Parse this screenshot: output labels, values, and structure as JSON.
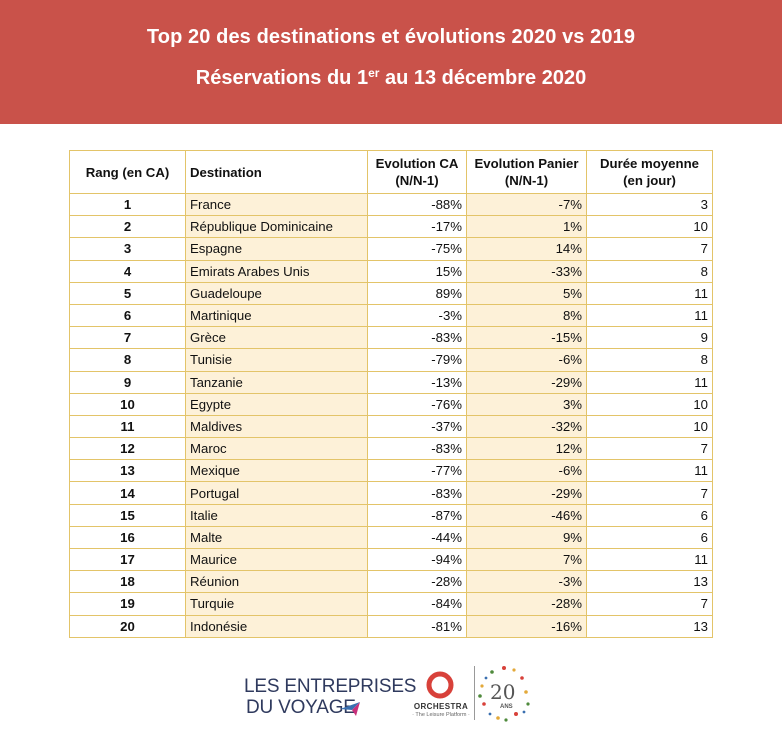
{
  "header": {
    "title_line1": "Top 20 des destinations et évolutions 2020 vs 2019",
    "title_line2_prefix": "Réservations du 1",
    "title_line2_sup": "er",
    "title_line2_suffix": " au 13 décembre 2020",
    "background_color": "#c9524a"
  },
  "table": {
    "headers": {
      "rank": "Rang (en CA)",
      "destination": "Destination",
      "ca_line1": "Evolution CA",
      "ca_line2": "(N/N-1)",
      "panier_line1": "Evolution Panier",
      "panier_line2": "(N/N-1)",
      "duree_line1": "Durée moyenne",
      "duree_line2": "(en jour)"
    },
    "rows": [
      {
        "rank": "1",
        "destination": "France",
        "ca": "-88%",
        "panier": "-7%",
        "duree": "3"
      },
      {
        "rank": "2",
        "destination": "République Dominicaine",
        "ca": "-17%",
        "panier": "1%",
        "duree": "10"
      },
      {
        "rank": "3",
        "destination": "Espagne",
        "ca": "-75%",
        "panier": "14%",
        "duree": "7"
      },
      {
        "rank": "4",
        "destination": "Emirats Arabes Unis",
        "ca": "15%",
        "panier": "-33%",
        "duree": "8"
      },
      {
        "rank": "5",
        "destination": "Guadeloupe",
        "ca": "89%",
        "panier": "5%",
        "duree": "11"
      },
      {
        "rank": "6",
        "destination": "Martinique",
        "ca": "-3%",
        "panier": "8%",
        "duree": "11"
      },
      {
        "rank": "7",
        "destination": "Grèce",
        "ca": "-83%",
        "panier": "-15%",
        "duree": "9"
      },
      {
        "rank": "8",
        "destination": "Tunisie",
        "ca": "-79%",
        "panier": "-6%",
        "duree": "8"
      },
      {
        "rank": "9",
        "destination": "Tanzanie",
        "ca": "-13%",
        "panier": "-29%",
        "duree": "11"
      },
      {
        "rank": "10",
        "destination": "Egypte",
        "ca": "-76%",
        "panier": "3%",
        "duree": "10"
      },
      {
        "rank": "11",
        "destination": "Maldives",
        "ca": "-37%",
        "panier": "-32%",
        "duree": "10"
      },
      {
        "rank": "12",
        "destination": "Maroc",
        "ca": "-83%",
        "panier": "12%",
        "duree": "7"
      },
      {
        "rank": "13",
        "destination": "Mexique",
        "ca": "-77%",
        "panier": "-6%",
        "duree": "11"
      },
      {
        "rank": "14",
        "destination": "Portugal",
        "ca": "-83%",
        "panier": "-29%",
        "duree": "7"
      },
      {
        "rank": "15",
        "destination": "Italie",
        "ca": "-87%",
        "panier": "-46%",
        "duree": "6"
      },
      {
        "rank": "16",
        "destination": "Malte",
        "ca": "-44%",
        "panier": "9%",
        "duree": "6"
      },
      {
        "rank": "17",
        "destination": "Maurice",
        "ca": "-94%",
        "panier": "7%",
        "duree": "11"
      },
      {
        "rank": "18",
        "destination": "Réunion",
        "ca": "-28%",
        "panier": "-3%",
        "duree": "13"
      },
      {
        "rank": "19",
        "destination": "Turquie",
        "ca": "-84%",
        "panier": "-28%",
        "duree": "7"
      },
      {
        "rank": "20",
        "destination": "Indonésie",
        "ca": "-81%",
        "panier": "-16%",
        "duree": "13"
      }
    ],
    "border_color": "#e3c469",
    "shade_color": "#fdf1d8"
  },
  "footer": {
    "lev_line1": "LES ENTREPRISES",
    "lev_line2": "DU VOYAGE",
    "orchestra_name": "ORCHESTRA",
    "orchestra_tagline": "· The Leisure Platform ·",
    "anniversary_number": "20",
    "anniversary_label": "ANS"
  }
}
